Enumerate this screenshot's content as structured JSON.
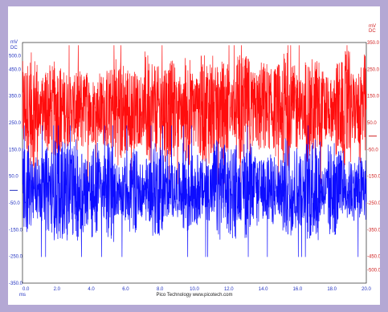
{
  "chart_data": {
    "type": "line",
    "title": "",
    "footer": "Pico Technology   www.picotech.com",
    "x_axis": {
      "unit": "ms",
      "range": [
        0,
        20
      ],
      "ticks": [
        "0.0",
        "2.0",
        "4.0",
        "6.0",
        "8.0",
        "10.0",
        "12.0",
        "14.0",
        "16.0",
        "18.0",
        "20.0"
      ]
    },
    "y_axis_left": {
      "unit_top": "mV",
      "unit_bottom": "DC",
      "color": "#2030c0",
      "range": [
        -350,
        550
      ],
      "ticks": [
        "500.0",
        "450.0",
        "350.0",
        "250.0",
        "150.0",
        "50.0",
        "-50.0",
        "-150.0",
        "-250.0",
        "-350.0"
      ],
      "tick_values": [
        500,
        450,
        350,
        250,
        150,
        50,
        -50,
        -150,
        -250,
        -350
      ]
    },
    "y_axis_right": {
      "unit_top": "mV",
      "unit_bottom": "DC",
      "color": "#d02020",
      "range": [
        -550,
        350
      ],
      "ticks": [
        "350.0",
        "250.0",
        "150.0",
        "50.0",
        "-50.0",
        "-150.0",
        "-250.0",
        "-350.0",
        "-450.0",
        "-500.0"
      ],
      "tick_values": [
        350,
        250,
        150,
        50,
        -50,
        -150,
        -250,
        -350,
        -450,
        -500
      ]
    },
    "series": [
      {
        "color": "#ff0000",
        "axis": "left",
        "center": 300,
        "amplitude": 200,
        "peak_min": 0,
        "peak_max": 540
      },
      {
        "color": "#0000ff",
        "axis": "left",
        "center": 0,
        "amplitude": 180,
        "peak_min": -320,
        "peak_max": 240
      }
    ],
    "grid": false,
    "legend": "none"
  }
}
